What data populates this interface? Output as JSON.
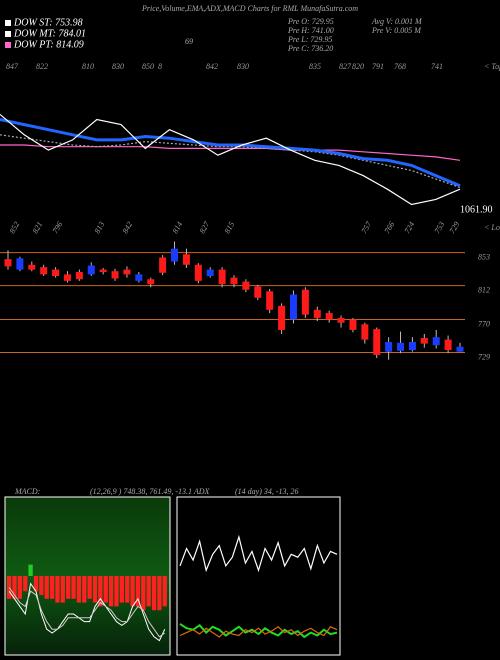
{
  "header": {
    "title": "Price,Volume,EMA,ADX,MACD Charts for RML MunafaSutra.com",
    "dow": [
      {
        "label": "DOW ST: 753.98",
        "color": "#ffffff"
      },
      {
        "label": "DOW MT: 784.01",
        "color": "#ffffff"
      },
      {
        "label": "DOW PT: 814.09",
        "color": "#ff66cc"
      }
    ],
    "info_left": [
      "Pre  O: 729.95",
      "Pre  H: 741.00",
      "Pre  L: 729.95",
      "Pre  C: 736.20"
    ],
    "info_right": [
      "Avg  V: 0.001 M",
      "Pre  V: 0.005 M"
    ],
    "marker": "69"
  },
  "chart_data": [
    {
      "type": "line",
      "tops": [
        847,
        822,
        810,
        830,
        850,
        8,
        842,
        830,
        835,
        827,
        820,
        791,
        768,
        741
      ],
      "tops_caption": "< Tops",
      "last_label": "1061.90",
      "ylim": [
        0,
        100
      ],
      "series": [
        {
          "color": "#ff66cc",
          "values": [
            50,
            50,
            49,
            49,
            49,
            49,
            49,
            48,
            48,
            48,
            48,
            48,
            47,
            47,
            47,
            46,
            45,
            44,
            43,
            41
          ]
        },
        {
          "color": "#aaaaaa",
          "values": [
            56,
            54,
            52,
            50,
            49,
            50,
            52,
            51,
            50,
            49,
            49,
            48,
            47,
            46,
            44,
            41,
            38,
            35,
            30,
            25
          ]
        },
        {
          "color": "#2266ff",
          "values": [
            65,
            62,
            59,
            56,
            53,
            53,
            55,
            54,
            52,
            50,
            50,
            49,
            48,
            47,
            45,
            42,
            41,
            38,
            32,
            26
          ]
        },
        {
          "color": "#ffffff",
          "values": [
            68,
            56,
            47,
            53,
            65,
            62,
            48,
            59,
            53,
            44,
            50,
            54,
            47,
            41,
            38,
            32,
            24,
            15,
            18,
            24
          ]
        }
      ]
    },
    {
      "type": "candlestick",
      "lows": [
        852,
        821,
        796,
        813,
        842,
        814,
        827,
        815,
        757,
        766,
        724,
        753,
        729
      ],
      "lows_caption": "< Lows",
      "ylim": [
        660,
        870
      ],
      "yticks": [
        853,
        812,
        770,
        729
      ],
      "level_color": "#c8641e",
      "up_color": "#1a3cff",
      "down_color": "#ff1a1a",
      "open": [
        845,
        832,
        838,
        835,
        832,
        826,
        829,
        826,
        832,
        830,
        832,
        818,
        820,
        847,
        842,
        851,
        838,
        824,
        832,
        822,
        817,
        811,
        805,
        787,
        770,
        807,
        782,
        778,
        772,
        770,
        764,
        758,
        730,
        731,
        732,
        747,
        738,
        745,
        729.95
      ],
      "high": [
        856,
        848,
        842,
        838,
        835,
        830,
        832,
        841,
        834,
        833,
        836,
        829,
        822,
        850,
        867,
        858,
        840,
        835,
        835,
        825,
        820,
        813,
        808,
        790,
        806,
        810,
        786,
        781,
        775,
        772,
        766,
        760,
        748,
        755,
        748,
        752,
        757,
        750,
        741
      ],
      "low": [
        832,
        830,
        830,
        824,
        822,
        816,
        818,
        824,
        826,
        818,
        822,
        816,
        810,
        825,
        838,
        834,
        815,
        822,
        810,
        810,
        804,
        794,
        778,
        752,
        765,
        772,
        768,
        766,
        760,
        754,
        740,
        722,
        720,
        728,
        730,
        735,
        734,
        728,
        729.95
      ],
      "close": [
        836,
        846,
        832,
        826,
        824,
        818,
        820,
        837,
        829,
        821,
        826,
        826,
        814,
        828,
        858,
        838,
        818,
        832,
        814,
        814,
        807,
        797,
        782,
        757,
        801,
        776,
        772,
        770,
        766,
        757,
        745,
        726,
        742,
        741,
        742,
        740,
        748,
        732,
        736.2
      ]
    },
    {
      "type": "macd",
      "label": "MACD:",
      "params": "(12,26,9 ) 748.38, 761.49, -13.1 ADX",
      "ylim": [
        -10,
        10
      ],
      "pos_color": "#22cc22",
      "neg_color": "#ff2020",
      "values": [
        -3,
        -3,
        -3,
        -2,
        1.5,
        -2,
        -2.5,
        -3,
        -3,
        -3.5,
        -3.5,
        -3,
        -3,
        -3.5,
        -3.5,
        -3,
        -3.5,
        -4,
        -3.5,
        -4,
        -4,
        -3.5,
        -3.5,
        -4,
        -4,
        -4.5,
        -4,
        -4.5,
        -4.5,
        -4
      ],
      "lines": [
        {
          "color": "#ffffff",
          "values": [
            -2,
            -3,
            -4,
            -5,
            -1,
            -2,
            -5,
            -7,
            -7.5,
            -7,
            -6,
            -5,
            -5,
            -5.5,
            -6,
            -6,
            -4,
            -3,
            -4,
            -5,
            -6,
            -6.5,
            -6,
            -4,
            -3,
            -5,
            -7,
            -8,
            -8.5,
            -7
          ]
        },
        {
          "color": "#cccccc",
          "values": [
            -1.5,
            -2.5,
            -3.5,
            -4,
            -2,
            -2.5,
            -4.5,
            -6,
            -7,
            -7,
            -6.5,
            -5.5,
            -5.5,
            -5.5,
            -5.5,
            -5.5,
            -4.5,
            -3.5,
            -4,
            -4.5,
            -5.5,
            -6,
            -6,
            -5,
            -4,
            -4.5,
            -6,
            -7,
            -8,
            -7.5
          ]
        }
      ]
    },
    {
      "type": "adx",
      "label": "(14 day) 34, -13, 26",
      "ylim": [
        0,
        100
      ],
      "lines": [
        {
          "color": "#ffffff",
          "values": [
            58,
            70,
            62,
            75,
            55,
            66,
            72,
            58,
            64,
            78,
            60,
            68,
            55,
            70,
            62,
            74,
            58,
            66,
            64,
            70,
            56,
            72,
            60,
            68,
            66
          ]
        },
        {
          "color": "#22dd22",
          "values": [
            18,
            15,
            14,
            17,
            12,
            16,
            14,
            10,
            13,
            16,
            12,
            14,
            11,
            15,
            12,
            10,
            14,
            11,
            13,
            9,
            12,
            10,
            14,
            11,
            12
          ]
        },
        {
          "color": "#dd6a10",
          "values": [
            10,
            12,
            14,
            11,
            15,
            12,
            9,
            13,
            11,
            10,
            14,
            12,
            15,
            11,
            13,
            16,
            12,
            14,
            10,
            13,
            15,
            12,
            10,
            16,
            14
          ]
        }
      ]
    }
  ]
}
